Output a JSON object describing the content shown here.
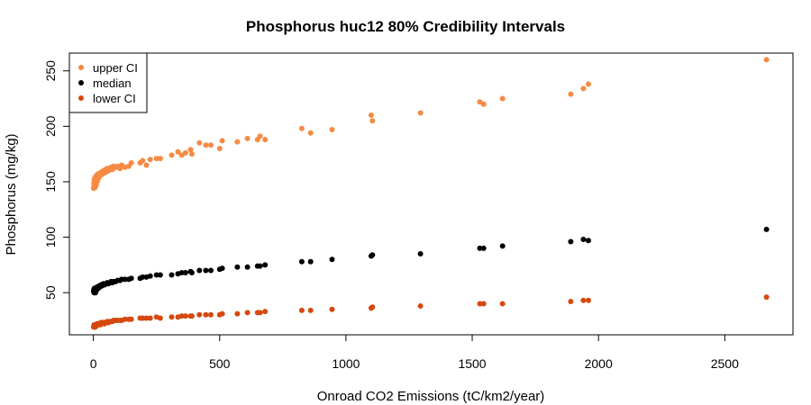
{
  "chart_data": {
    "type": "scatter",
    "title": "Phosphorus huc12 80% Credibility Intervals",
    "xlabel": "Onroad CO2 Emissions (tC/km2/year)",
    "ylabel": "Phosphorus (mg/kg)",
    "xlim": [
      -95,
      2770
    ],
    "ylim": [
      12,
      266
    ],
    "x_ticks": [
      0,
      500,
      1000,
      1500,
      2000,
      2500
    ],
    "y_ticks": [
      50,
      100,
      150,
      200,
      250
    ],
    "grid": false,
    "legend_position": "top-left",
    "series": [
      {
        "name": "upper CI",
        "color": "#f58a43",
        "points": [
          [
            1,
            144
          ],
          [
            2,
            148
          ],
          [
            3,
            151
          ],
          [
            4,
            146
          ],
          [
            5,
            153
          ],
          [
            6,
            149
          ],
          [
            7,
            145
          ],
          [
            8,
            152
          ],
          [
            9,
            150
          ],
          [
            10,
            155
          ],
          [
            11,
            147
          ],
          [
            12,
            153
          ],
          [
            14,
            156
          ],
          [
            15,
            150
          ],
          [
            17,
            154
          ],
          [
            18,
            157
          ],
          [
            20,
            153
          ],
          [
            22,
            157
          ],
          [
            25,
            155
          ],
          [
            27,
            158
          ],
          [
            30,
            156
          ],
          [
            33,
            159
          ],
          [
            36,
            157
          ],
          [
            40,
            160
          ],
          [
            44,
            158
          ],
          [
            48,
            161
          ],
          [
            52,
            159
          ],
          [
            55,
            162
          ],
          [
            60,
            160
          ],
          [
            65,
            162
          ],
          [
            70,
            163
          ],
          [
            75,
            161
          ],
          [
            80,
            164
          ],
          [
            88,
            163
          ],
          [
            95,
            164
          ],
          [
            105,
            162
          ],
          [
            112,
            165
          ],
          [
            125,
            163
          ],
          [
            140,
            164
          ],
          [
            150,
            167
          ],
          [
            185,
            167
          ],
          [
            195,
            169
          ],
          [
            210,
            165
          ],
          [
            225,
            170
          ],
          [
            250,
            171
          ],
          [
            265,
            171
          ],
          [
            310,
            174
          ],
          [
            335,
            177
          ],
          [
            350,
            174
          ],
          [
            365,
            176
          ],
          [
            385,
            179
          ],
          [
            390,
            175
          ],
          [
            420,
            185
          ],
          [
            445,
            183
          ],
          [
            465,
            183
          ],
          [
            500,
            180
          ],
          [
            510,
            187
          ],
          [
            570,
            186
          ],
          [
            610,
            189
          ],
          [
            650,
            188
          ],
          [
            660,
            191
          ],
          [
            680,
            188
          ],
          [
            825,
            198
          ],
          [
            860,
            194
          ],
          [
            945,
            197
          ],
          [
            1100,
            210
          ],
          [
            1105,
            205
          ],
          [
            1295,
            212
          ],
          [
            1530,
            222
          ],
          [
            1545,
            220
          ],
          [
            1620,
            225
          ],
          [
            1890,
            229
          ],
          [
            1940,
            234
          ],
          [
            1960,
            238
          ],
          [
            2665,
            260
          ]
        ]
      },
      {
        "name": "median",
        "color": "#000000",
        "points": [
          [
            1,
            51
          ],
          [
            2,
            53
          ],
          [
            3,
            50
          ],
          [
            4,
            52
          ],
          [
            5,
            54
          ],
          [
            6,
            51
          ],
          [
            7,
            53
          ],
          [
            8,
            50
          ],
          [
            9,
            52
          ],
          [
            10,
            54
          ],
          [
            11,
            52
          ],
          [
            12,
            53
          ],
          [
            14,
            55
          ],
          [
            15,
            53
          ],
          [
            17,
            54
          ],
          [
            18,
            55
          ],
          [
            20,
            54
          ],
          [
            22,
            56
          ],
          [
            25,
            55
          ],
          [
            27,
            56
          ],
          [
            30,
            57
          ],
          [
            33,
            56
          ],
          [
            36,
            57
          ],
          [
            40,
            58
          ],
          [
            44,
            57
          ],
          [
            48,
            58
          ],
          [
            52,
            58
          ],
          [
            55,
            59
          ],
          [
            60,
            58
          ],
          [
            65,
            59
          ],
          [
            70,
            60
          ],
          [
            75,
            59
          ],
          [
            80,
            60
          ],
          [
            88,
            60
          ],
          [
            95,
            61
          ],
          [
            105,
            61
          ],
          [
            112,
            62
          ],
          [
            125,
            62
          ],
          [
            140,
            62
          ],
          [
            150,
            63
          ],
          [
            185,
            63
          ],
          [
            195,
            64
          ],
          [
            210,
            64
          ],
          [
            225,
            65
          ],
          [
            250,
            66
          ],
          [
            265,
            66
          ],
          [
            310,
            66
          ],
          [
            335,
            67
          ],
          [
            350,
            68
          ],
          [
            365,
            68
          ],
          [
            385,
            69
          ],
          [
            390,
            68
          ],
          [
            420,
            70
          ],
          [
            445,
            70
          ],
          [
            465,
            70
          ],
          [
            500,
            71
          ],
          [
            510,
            72
          ],
          [
            570,
            73
          ],
          [
            610,
            73
          ],
          [
            650,
            74
          ],
          [
            660,
            74
          ],
          [
            680,
            75
          ],
          [
            825,
            78
          ],
          [
            860,
            78
          ],
          [
            945,
            80
          ],
          [
            1100,
            83
          ],
          [
            1105,
            84
          ],
          [
            1295,
            85
          ],
          [
            1530,
            90
          ],
          [
            1545,
            90
          ],
          [
            1620,
            92
          ],
          [
            1890,
            96
          ],
          [
            1940,
            98
          ],
          [
            1960,
            97
          ],
          [
            2665,
            107
          ]
        ]
      },
      {
        "name": "lower CI",
        "color": "#d6480f",
        "points": [
          [
            1,
            19
          ],
          [
            2,
            20
          ],
          [
            3,
            21
          ],
          [
            4,
            19
          ],
          [
            5,
            20
          ],
          [
            6,
            21
          ],
          [
            7,
            19
          ],
          [
            8,
            20
          ],
          [
            9,
            21
          ],
          [
            10,
            20
          ],
          [
            11,
            21
          ],
          [
            12,
            20
          ],
          [
            14,
            21
          ],
          [
            15,
            22
          ],
          [
            17,
            21
          ],
          [
            18,
            22
          ],
          [
            20,
            21
          ],
          [
            22,
            22
          ],
          [
            25,
            22
          ],
          [
            27,
            21
          ],
          [
            30,
            23
          ],
          [
            33,
            22
          ],
          [
            36,
            23
          ],
          [
            40,
            23
          ],
          [
            44,
            22
          ],
          [
            48,
            23
          ],
          [
            52,
            23
          ],
          [
            55,
            24
          ],
          [
            60,
            23
          ],
          [
            65,
            24
          ],
          [
            70,
            24
          ],
          [
            75,
            24
          ],
          [
            80,
            25
          ],
          [
            88,
            25
          ],
          [
            95,
            25
          ],
          [
            105,
            25
          ],
          [
            112,
            25
          ],
          [
            125,
            26
          ],
          [
            140,
            26
          ],
          [
            150,
            26
          ],
          [
            185,
            27
          ],
          [
            195,
            27
          ],
          [
            210,
            27
          ],
          [
            225,
            27
          ],
          [
            250,
            28
          ],
          [
            265,
            27
          ],
          [
            310,
            28
          ],
          [
            335,
            28
          ],
          [
            350,
            29
          ],
          [
            365,
            29
          ],
          [
            385,
            29
          ],
          [
            390,
            29
          ],
          [
            420,
            30
          ],
          [
            445,
            30
          ],
          [
            465,
            30
          ],
          [
            500,
            30
          ],
          [
            510,
            31
          ],
          [
            570,
            31
          ],
          [
            610,
            32
          ],
          [
            650,
            32
          ],
          [
            660,
            32
          ],
          [
            680,
            33
          ],
          [
            825,
            34
          ],
          [
            860,
            34
          ],
          [
            945,
            35
          ],
          [
            1100,
            36
          ],
          [
            1105,
            37
          ],
          [
            1295,
            38
          ],
          [
            1530,
            40
          ],
          [
            1545,
            40
          ],
          [
            1620,
            40
          ],
          [
            1890,
            42
          ],
          [
            1940,
            43
          ],
          [
            1960,
            43
          ],
          [
            2665,
            46
          ]
        ]
      }
    ]
  }
}
